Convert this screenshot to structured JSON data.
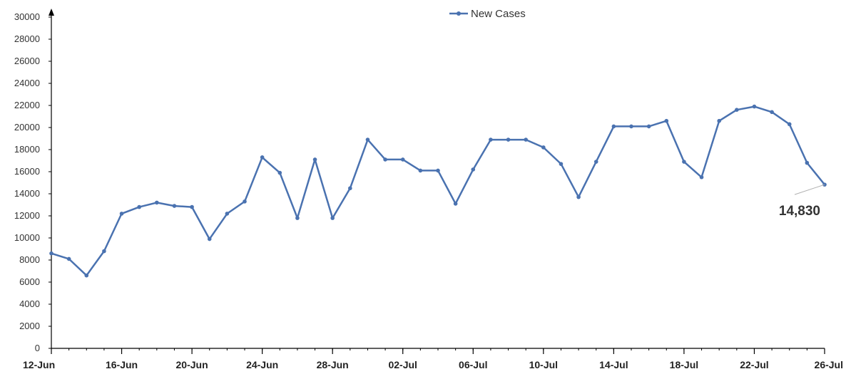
{
  "chart_data": {
    "type": "line",
    "title": "",
    "xlabel": "",
    "ylabel": "",
    "ylim": [
      0,
      30000
    ],
    "yticks": [
      "0",
      "2000",
      "4000",
      "6000",
      "8000",
      "10000",
      "12000",
      "14000",
      "16000",
      "18000",
      "20000",
      "22000",
      "24000",
      "26000",
      "28000",
      "30000"
    ],
    "x_tick_labels": [
      "12-Jun",
      "16-Jun",
      "20-Jun",
      "24-Jun",
      "28-Jun",
      "02-Jul",
      "06-Jul",
      "10-Jul",
      "14-Jul",
      "18-Jul",
      "22-Jul",
      "26-Jul"
    ],
    "x": [
      "12-Jun",
      "13-Jun",
      "14-Jun",
      "15-Jun",
      "16-Jun",
      "17-Jun",
      "18-Jun",
      "19-Jun",
      "20-Jun",
      "21-Jun",
      "22-Jun",
      "23-Jun",
      "24-Jun",
      "25-Jun",
      "26-Jun",
      "27-Jun",
      "28-Jun",
      "29-Jun",
      "30-Jun",
      "01-Jul",
      "02-Jul",
      "03-Jul",
      "04-Jul",
      "05-Jul",
      "06-Jul",
      "07-Jul",
      "08-Jul",
      "09-Jul",
      "10-Jul",
      "11-Jul",
      "12-Jul",
      "13-Jul",
      "14-Jul",
      "15-Jul",
      "16-Jul",
      "17-Jul",
      "18-Jul",
      "19-Jul",
      "20-Jul",
      "21-Jul",
      "22-Jul",
      "23-Jul",
      "24-Jul",
      "25-Jul",
      "26-Jul"
    ],
    "series": [
      {
        "name": "New Cases",
        "color": "#4a72b0",
        "values": [
          8600,
          8100,
          6600,
          8800,
          12200,
          12800,
          13200,
          12900,
          12800,
          9900,
          12200,
          13300,
          17300,
          15900,
          11800,
          17100,
          11800,
          14500,
          18900,
          17100,
          17100,
          16100,
          16100,
          13100,
          16200,
          18900,
          18900,
          18900,
          18200,
          16700,
          13700,
          16900,
          20100,
          20100,
          20100,
          20600,
          16900,
          15500,
          20600,
          21600,
          21900,
          21400,
          20300,
          16800,
          14830
        ]
      }
    ],
    "legend": {
      "position": "top-center",
      "label": "New Cases"
    },
    "annotation": {
      "text": "14,830",
      "x": "26-Jul",
      "value": 14830
    },
    "grid": false
  }
}
